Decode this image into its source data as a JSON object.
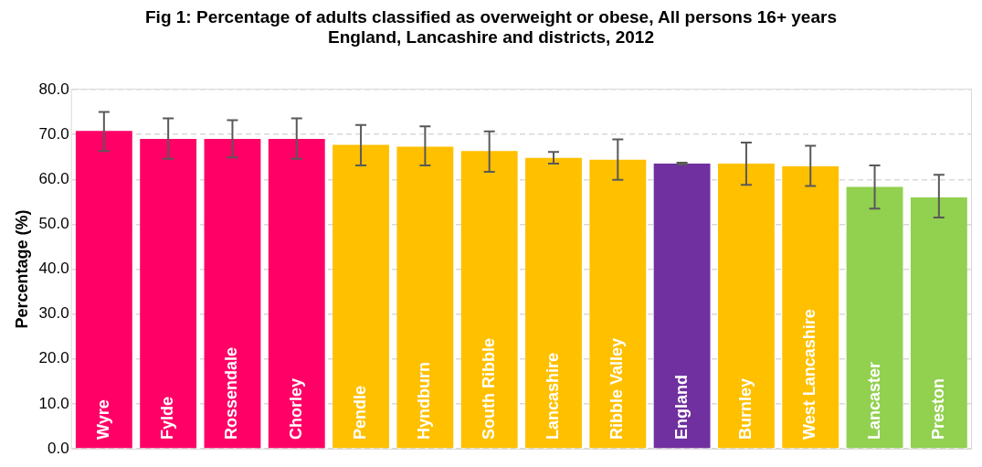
{
  "chart_data": {
    "type": "bar",
    "title": "Fig 1: Percentage of adults classified as overweight or obese, All persons 16+ years",
    "subtitle": "England, Lancashire and districts, 2012",
    "ylabel": "Percentage (%)",
    "categories": [
      "Wyre",
      "Fylde",
      "Rossendale",
      "Chorley",
      "Pendle",
      "Hyndburn",
      "South Ribble",
      "Lancashire",
      "Ribble Valley",
      "England",
      "Burnley",
      "West Lancashire",
      "Lancaster",
      "Preston"
    ],
    "values": [
      70.8,
      69.0,
      69.0,
      69.0,
      67.7,
      67.3,
      66.3,
      64.8,
      64.4,
      63.5,
      63.5,
      62.9,
      58.3,
      56.0
    ],
    "colors": [
      "#ff0066",
      "#ff0066",
      "#ff0066",
      "#ff0066",
      "#ffc000",
      "#ffc000",
      "#ffc000",
      "#ffc000",
      "#ffc000",
      "#7030a0",
      "#ffc000",
      "#ffc000",
      "#92d050",
      "#92d050"
    ],
    "errors": [
      [
        66.3,
        75.0
      ],
      [
        64.6,
        73.6
      ],
      [
        64.9,
        73.2
      ],
      [
        64.6,
        73.6
      ],
      [
        63.1,
        72.1
      ],
      [
        63.1,
        71.8
      ],
      [
        61.7,
        70.7
      ],
      [
        63.5,
        66.1
      ],
      [
        59.9,
        68.9
      ],
      [
        63.3,
        63.7
      ],
      [
        58.8,
        68.2
      ],
      [
        58.5,
        67.5
      ],
      [
        53.5,
        63.1
      ],
      [
        51.5,
        61.0
      ]
    ],
    "ylim": [
      0,
      80
    ],
    "yticks": [
      {
        "value": 0,
        "label": "0.0"
      },
      {
        "value": 10,
        "label": "10.0"
      },
      {
        "value": 20,
        "label": "20.0"
      },
      {
        "value": 30,
        "label": "30.0"
      },
      {
        "value": 40,
        "label": "40.0"
      },
      {
        "value": 50,
        "label": "50.0"
      },
      {
        "value": 60,
        "label": "60.0"
      },
      {
        "value": 70,
        "label": "70.0"
      },
      {
        "value": 80,
        "label": "80.0"
      }
    ],
    "grid": "y",
    "legend": false
  }
}
